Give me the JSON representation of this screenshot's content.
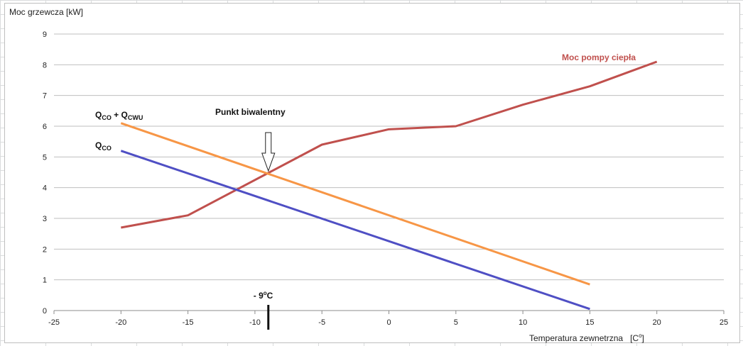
{
  "chart_data": {
    "type": "line",
    "title": "",
    "ylabel": "Moc grzewcza [kW]",
    "xlabel": "Temperatura zewnetrzna",
    "xlabel_unit": "[C",
    "xlabel_unit_sup": "o",
    "xlabel_unit_end": "]",
    "xlim": [
      -25,
      25
    ],
    "ylim": [
      0,
      9
    ],
    "x_ticks": [
      -25,
      -20,
      -15,
      -10,
      -5,
      0,
      5,
      10,
      15,
      20,
      25
    ],
    "y_ticks": [
      0,
      1,
      2,
      3,
      4,
      5,
      6,
      7,
      8,
      9
    ],
    "grid": "horizontal",
    "series": [
      {
        "name": "Moc pompy ciepła",
        "color": "#c0504d",
        "x": [
          -20,
          -15,
          -5,
          0,
          5,
          10,
          15,
          20
        ],
        "y": [
          2.7,
          3.1,
          5.4,
          5.9,
          6.0,
          6.7,
          7.3,
          8.1
        ]
      },
      {
        "name_parts": [
          "Q",
          "CO",
          " + Q",
          "CWU"
        ],
        "color": "#f79646",
        "x": [
          -20,
          15
        ],
        "y": [
          6.1,
          0.85
        ]
      },
      {
        "name_parts": [
          "Q",
          "CO"
        ],
        "color": "#4f4fc4",
        "x": [
          -20,
          15
        ],
        "y": [
          5.2,
          0.05
        ]
      }
    ],
    "annotations": {
      "bivalent_label": "Punkt biwalentny",
      "bivalent_point": {
        "x": -9,
        "y": 4.5
      },
      "marker_text": "- 9",
      "marker_sup": "o",
      "marker_unit": "C",
      "marker_x": -9
    }
  }
}
